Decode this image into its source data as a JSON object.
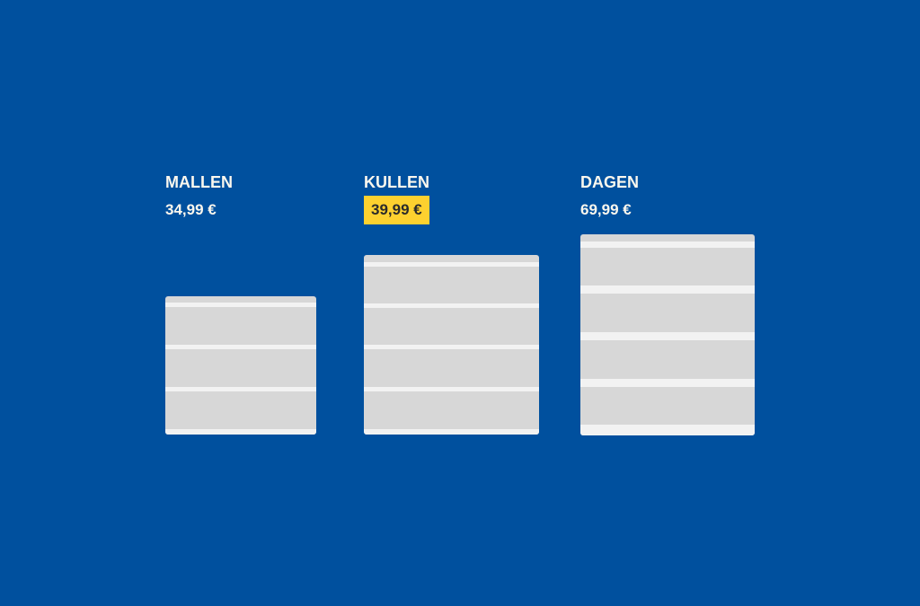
{
  "products": [
    {
      "name": "MALLEN",
      "price": "34,99 €",
      "highlighted": false,
      "drawers": 3
    },
    {
      "name": "KULLEN",
      "price": "39,99 €",
      "highlighted": true,
      "drawers": 4
    },
    {
      "name": "DAGEN",
      "price": "69,99 €",
      "highlighted": false,
      "drawers": 4
    }
  ],
  "colors": {
    "background": "#00509e",
    "highlight": "#fdd12f",
    "dresser": "#d7d7d7",
    "stripe": "#f2f2f2",
    "text": "#fbf7ee"
  }
}
